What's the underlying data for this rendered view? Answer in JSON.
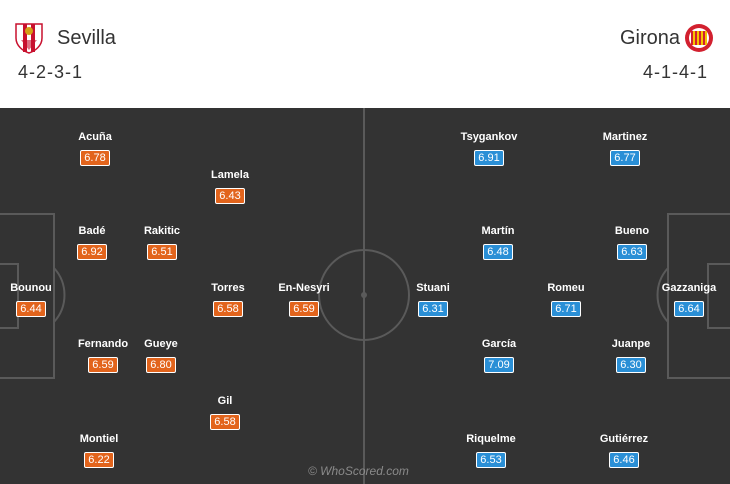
{
  "home": {
    "name": "Sevilla",
    "formation": "4-2-3-1",
    "crest": "sevilla-crest-icon",
    "color": "#e2641c",
    "players": [
      {
        "name": "Acuña",
        "rating": "6.78"
      },
      {
        "name": "Lamela",
        "rating": "6.43"
      },
      {
        "name": "Badé",
        "rating": "6.92"
      },
      {
        "name": "Rakitic",
        "rating": "6.51"
      },
      {
        "name": "Bounou",
        "rating": "6.44"
      },
      {
        "name": "Torres",
        "rating": "6.58"
      },
      {
        "name": "En-Nesyri",
        "rating": "6.59"
      },
      {
        "name": "Fernando",
        "rating": "6.59"
      },
      {
        "name": "Gueye",
        "rating": "6.80"
      },
      {
        "name": "Gil",
        "rating": "6.58"
      },
      {
        "name": "Montiel",
        "rating": "6.22"
      }
    ]
  },
  "away": {
    "name": "Girona",
    "formation": "4-1-4-1",
    "crest": "girona-crest-icon",
    "color": "#2a8fd6",
    "players": [
      {
        "name": "Tsygankov",
        "rating": "6.91"
      },
      {
        "name": "Martinez",
        "rating": "6.77"
      },
      {
        "name": "Martín",
        "rating": "6.48"
      },
      {
        "name": "Bueno",
        "rating": "6.63"
      },
      {
        "name": "Stuani",
        "rating": "6.31"
      },
      {
        "name": "Romeu",
        "rating": "6.71"
      },
      {
        "name": "Gazzaniga",
        "rating": "6.64"
      },
      {
        "name": "García",
        "rating": "7.09"
      },
      {
        "name": "Juanpe",
        "rating": "6.30"
      },
      {
        "name": "Riquelme",
        "rating": "6.53"
      },
      {
        "name": "Gutiérrez",
        "rating": "6.46"
      }
    ]
  },
  "watermark": "© WhoScored.com"
}
